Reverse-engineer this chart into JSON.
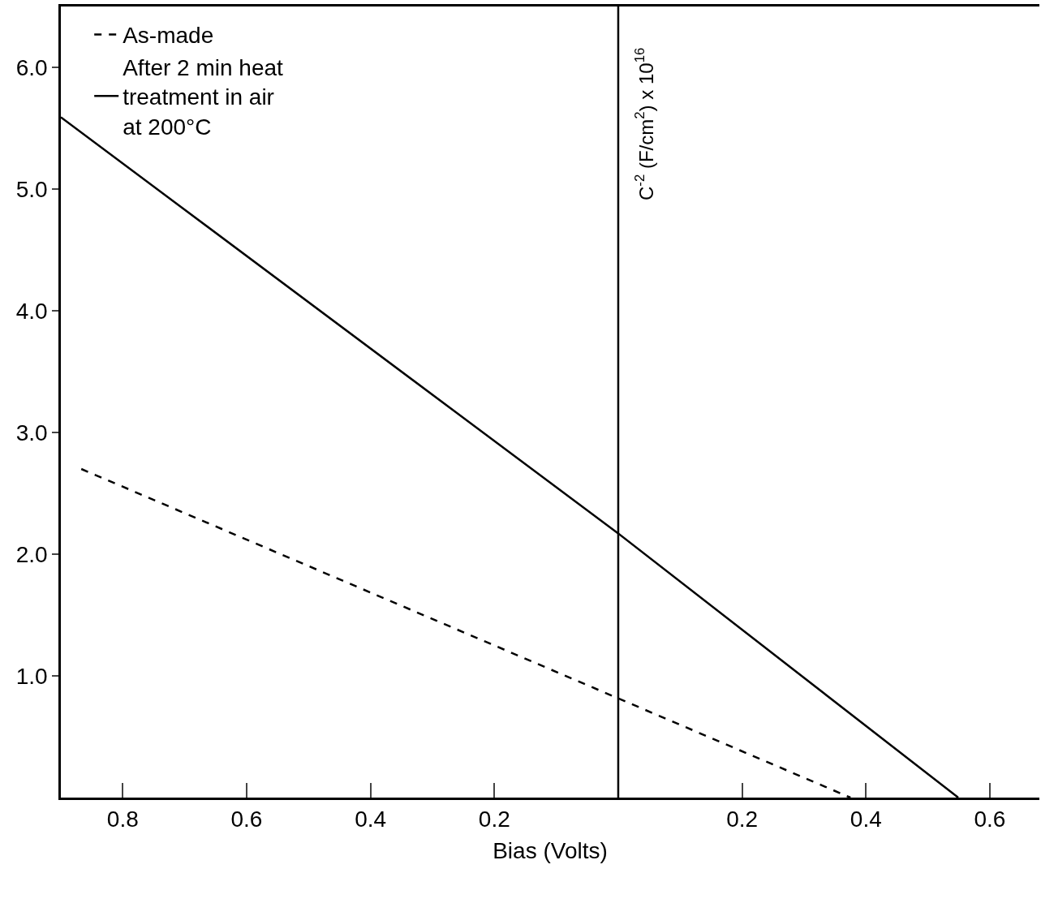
{
  "chart_data": {
    "type": "line",
    "xlabel": "Bias (Volts)",
    "ylabel": "C$^{-2}$ (F/cm$^{2}$) x 10$^{16}$",
    "series": [
      {
        "name": "As-made",
        "color": "#000000",
        "line_style": "dashed",
        "x": [
          -0.867,
          0.375
        ],
        "values": [
          2.7,
          0.0
        ]
      },
      {
        "name": "After 2 min heat treatment in air at 200°C",
        "color": "#000000",
        "line_style": "solid",
        "x": [
          -0.9,
          0.0,
          0.549
        ],
        "values": [
          5.59,
          2.17,
          0.0
        ]
      }
    ],
    "xlim": [
      -0.9,
      0.68
    ],
    "ylim": [
      0,
      6.5
    ],
    "xticks": [
      {
        "value": -0.8,
        "label": "0.8"
      },
      {
        "value": -0.6,
        "label": "0.6"
      },
      {
        "value": -0.4,
        "label": "0.4"
      },
      {
        "value": -0.2,
        "label": "0.2"
      },
      {
        "value": 0.2,
        "label": "0.2"
      },
      {
        "value": 0.4,
        "label": "0.4"
      },
      {
        "value": 0.6,
        "label": "0.6"
      }
    ],
    "yticks": [
      {
        "value": 1.0,
        "label": "1.0"
      },
      {
        "value": 2.0,
        "label": "2.0"
      },
      {
        "value": 3.0,
        "label": "3.0"
      },
      {
        "value": 4.0,
        "label": "4.0"
      },
      {
        "value": 5.0,
        "label": "5.0"
      },
      {
        "value": 6.0,
        "label": "6.0"
      }
    ],
    "ref_lines": [
      {
        "axis": "x",
        "value": 0,
        "color": "#000000"
      }
    ],
    "legend": "top left",
    "marker": "none"
  }
}
